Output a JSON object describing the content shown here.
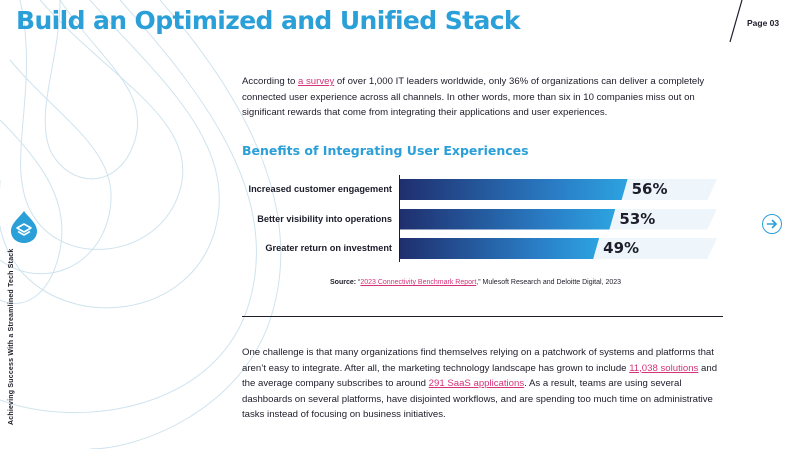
{
  "header": {
    "title": "Build an Optimized and Unified Stack",
    "page_number": "Page 03"
  },
  "intro": {
    "before": "According to ",
    "link": "a survey",
    "after": " of over 1,000 IT leaders worldwide, only 36% of organizations can deliver a completely connected user experience across all channels. In other words, more than six in 10 companies miss out on significant rewards that come from integrating their applications and user experiences."
  },
  "section_heading": "Benefits of Integrating User Experiences",
  "chart_data": {
    "type": "bar",
    "orientation": "horizontal",
    "categories": [
      "Increased customer engagement",
      "Better visibility into operations",
      "Greater return on investment"
    ],
    "values": [
      56,
      53,
      49
    ],
    "value_labels": [
      "56%",
      "53%",
      "49%"
    ],
    "xlim": [
      0,
      100
    ],
    "title": "",
    "xlabel": "",
    "ylabel": "",
    "colors": {
      "bar_start": "#1f2f6e",
      "bar_end": "#2da3e0",
      "track": "#eef6fb"
    }
  },
  "source": {
    "label": "Source:",
    "open_quote": " “",
    "link": "2023 Connectivity Benchmark Report",
    "rest": ",” Mulesoft Research and Deloitte Digital, 2023"
  },
  "outro": {
    "part1": "One challenge is that many organizations find themselves relying on a patchwork of systems and platforms that aren’t easy to integrate. After all, the marketing technology landscape has grown to include ",
    "link1": "11,038 solutions",
    "part2": " and the average company subscribes to around ",
    "link2": "291 SaaS applications",
    "part3": ". As a result, teams are using several dashboards on several platforms, have disjointed workflows, and are spending too much time on administrative tasks instead of focusing on business initiatives."
  },
  "sidebar": {
    "vertical_text": "Achieving Success With a Streamlined Tech Stack",
    "logo_icon": "drupal-drop-layers-icon"
  },
  "navigation": {
    "next_icon": "arrow-right-circle-icon"
  },
  "colors": {
    "accent": "#2a9fd8",
    "link": "#d4327a",
    "text": "#1d1d2b"
  }
}
